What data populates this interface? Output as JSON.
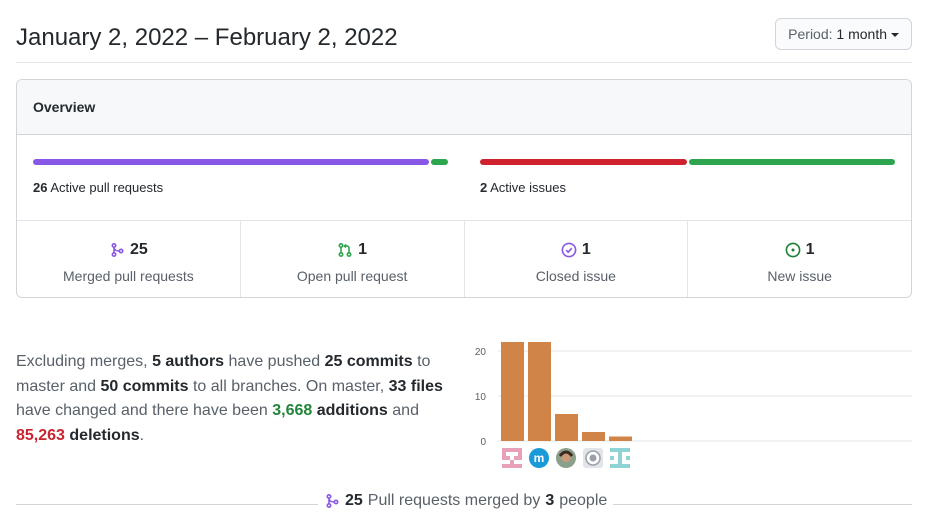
{
  "header": {
    "date_range": "January 2, 2022 – February 2, 2022",
    "period_label": "Period:",
    "period_value": "1 month"
  },
  "overview": {
    "title": "Overview",
    "pull_requests": {
      "count": "26",
      "label": "Active pull requests",
      "merged_fraction": 0.96,
      "open_fraction": 0.04,
      "colors": {
        "merged": "#8957e5",
        "open": "#2da44e"
      }
    },
    "issues": {
      "count": "2",
      "label": "Active issues",
      "closed_fraction": 0.5,
      "new_fraction": 0.5,
      "colors": {
        "closed": "#cf222e",
        "new": "#2da44e"
      }
    },
    "stats": [
      {
        "count": "25",
        "label": "Merged pull requests",
        "icon": "git-merge-icon",
        "color": "#8957e5"
      },
      {
        "count": "1",
        "label": "Open pull request",
        "icon": "git-pull-request-icon",
        "color": "#2da44e"
      },
      {
        "count": "1",
        "label": "Closed issue",
        "icon": "issue-closed-icon",
        "color": "#8957e5"
      },
      {
        "count": "1",
        "label": "New issue",
        "icon": "issue-opened-icon",
        "color": "#1a7f37"
      }
    ]
  },
  "summary": {
    "t1": "Excluding merges, ",
    "authors": "5 authors",
    "t2": " have pushed ",
    "commits_master": "25 commits",
    "t3": " to master and ",
    "commits_all": "50 commits",
    "t4": " to all branches. On master, ",
    "files": "33 files",
    "t5": " have changed and there have been ",
    "additions": "3,668",
    "additions_word": "additions",
    "t6": " and ",
    "deletions": "85,263",
    "deletions_word": "deletions",
    "t7": "."
  },
  "chart_data": {
    "type": "bar",
    "values": [
      22,
      22,
      6,
      2,
      1
    ],
    "yticks": [
      "0",
      "10",
      "20"
    ],
    "ylim": [
      0,
      22
    ],
    "bar_color": "#d18447",
    "grid": true,
    "avatars": [
      "identicon-pink",
      "m-logo",
      "user-photo",
      "github-octocat",
      "identicon-teal"
    ]
  },
  "footer": {
    "count": "25",
    "t1": " Pull requests merged by ",
    "people": "3",
    "t2": " people"
  }
}
